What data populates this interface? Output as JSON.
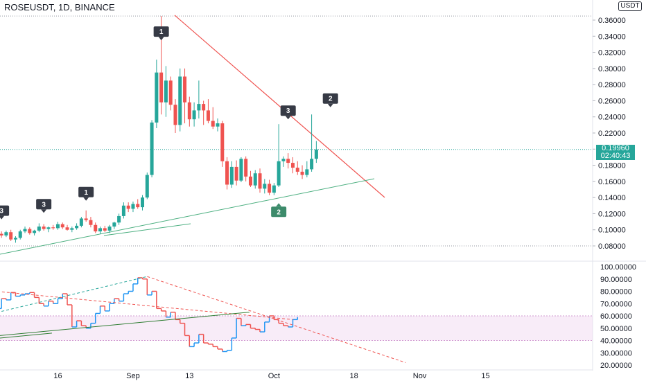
{
  "header": {
    "title": "ROSEUSDT, 1D, BINANCE",
    "currency": "USDT"
  },
  "price_tag": {
    "price": "0.19960",
    "countdown": "02:40:43"
  },
  "colors": {
    "up": "#26a69a",
    "down": "#ef5350",
    "trend": "#ef5350",
    "support": "#4caf80",
    "rsi_up": "#2196f3",
    "rsi_down": "#ef5350",
    "band": "#f3e0f3"
  },
  "x_ticks": [
    {
      "label": "16",
      "day": 16
    },
    {
      "label": "Sep",
      "day": 32
    },
    {
      "label": "13",
      "day": 44
    },
    {
      "label": "Oct",
      "day": 62
    },
    {
      "label": "18",
      "day": 79
    },
    {
      "label": "Nov",
      "day": 93
    },
    {
      "label": "15",
      "day": 107
    }
  ],
  "markers": [
    {
      "label": "3",
      "day": 1,
      "price": 0.113,
      "kind": "up"
    },
    {
      "label": "3",
      "day": 10,
      "price": 0.121,
      "kind": "up"
    },
    {
      "label": "1",
      "day": 19,
      "price": 0.136,
      "kind": "up"
    },
    {
      "label": "1",
      "day": 35,
      "price": 0.335,
      "kind": "up"
    },
    {
      "label": "3",
      "day": 62,
      "price": 0.237,
      "kind": "up"
    },
    {
      "label": "2",
      "day": 71,
      "price": 0.252,
      "kind": "up"
    },
    {
      "label": "2",
      "day": 60,
      "price": 0.133,
      "kind": "down"
    }
  ],
  "chart_data": [
    {
      "type": "candlestick",
      "title": "ROSEUSDT, 1D, BINANCE",
      "ylim": [
        0.074,
        0.38
      ],
      "y_ticks": [
        0.08,
        0.1,
        0.12,
        0.14,
        0.16,
        0.18,
        0.2,
        0.22,
        0.24,
        0.26,
        0.28,
        0.3,
        0.32,
        0.34,
        0.36
      ],
      "y_tick_labels": [
        "0.08000",
        "0.10000",
        "0.12000",
        "0.14000",
        "0.16000",
        "0.18000",
        "0.20000",
        "0.22000",
        "0.24000",
        "0.26000",
        "0.28000",
        "0.30000",
        "0.32000",
        "0.34000",
        "0.36000"
      ],
      "last_price": 0.1996,
      "candles": [
        [
          0.097,
          0.101,
          0.092,
          0.095
        ],
        [
          0.095,
          0.098,
          0.09,
          0.093
        ],
        [
          0.093,
          0.099,
          0.091,
          0.097
        ],
        [
          0.097,
          0.1,
          0.086,
          0.088
        ],
        [
          0.088,
          0.092,
          0.084,
          0.09
        ],
        [
          0.09,
          0.1,
          0.088,
          0.098
        ],
        [
          0.098,
          0.104,
          0.096,
          0.101
        ],
        [
          0.101,
          0.103,
          0.094,
          0.096
        ],
        [
          0.096,
          0.1,
          0.093,
          0.099
        ],
        [
          0.099,
          0.108,
          0.097,
          0.104
        ],
        [
          0.104,
          0.107,
          0.099,
          0.101
        ],
        [
          0.101,
          0.104,
          0.097,
          0.103
        ],
        [
          0.103,
          0.106,
          0.1,
          0.102
        ],
        [
          0.102,
          0.11,
          0.1,
          0.107
        ],
        [
          0.107,
          0.109,
          0.101,
          0.103
        ],
        [
          0.103,
          0.106,
          0.099,
          0.1
        ],
        [
          0.1,
          0.104,
          0.097,
          0.102
        ],
        [
          0.102,
          0.108,
          0.1,
          0.105
        ],
        [
          0.105,
          0.116,
          0.103,
          0.114
        ],
        [
          0.114,
          0.124,
          0.11,
          0.112
        ],
        [
          0.112,
          0.116,
          0.103,
          0.106
        ],
        [
          0.106,
          0.109,
          0.096,
          0.098
        ],
        [
          0.098,
          0.104,
          0.095,
          0.102
        ],
        [
          0.102,
          0.105,
          0.097,
          0.099
        ],
        [
          0.099,
          0.106,
          0.096,
          0.104
        ],
        [
          0.104,
          0.11,
          0.101,
          0.109
        ],
        [
          0.109,
          0.12,
          0.106,
          0.117
        ],
        [
          0.117,
          0.134,
          0.114,
          0.13
        ],
        [
          0.13,
          0.134,
          0.122,
          0.126
        ],
        [
          0.126,
          0.135,
          0.122,
          0.132
        ],
        [
          0.132,
          0.138,
          0.126,
          0.128
        ],
        [
          0.128,
          0.143,
          0.124,
          0.14
        ],
        [
          0.14,
          0.171,
          0.138,
          0.168
        ],
        [
          0.168,
          0.236,
          0.165,
          0.233
        ],
        [
          0.233,
          0.311,
          0.226,
          0.295
        ],
        [
          0.295,
          0.365,
          0.243,
          0.258
        ],
        [
          0.258,
          0.303,
          0.24,
          0.285
        ],
        [
          0.285,
          0.29,
          0.248,
          0.255
        ],
        [
          0.255,
          0.262,
          0.22,
          0.23
        ],
        [
          0.23,
          0.3,
          0.222,
          0.29
        ],
        [
          0.29,
          0.3,
          0.232,
          0.258
        ],
        [
          0.258,
          0.265,
          0.228,
          0.237
        ],
        [
          0.237,
          0.258,
          0.228,
          0.248
        ],
        [
          0.248,
          0.285,
          0.238,
          0.256
        ],
        [
          0.256,
          0.26,
          0.23,
          0.248
        ],
        [
          0.248,
          0.262,
          0.232,
          0.235
        ],
        [
          0.235,
          0.252,
          0.225,
          0.228
        ],
        [
          0.228,
          0.238,
          0.222,
          0.232
        ],
        [
          0.232,
          0.235,
          0.178,
          0.185
        ],
        [
          0.185,
          0.19,
          0.15,
          0.156
        ],
        [
          0.156,
          0.185,
          0.152,
          0.178
        ],
        [
          0.178,
          0.186,
          0.155,
          0.161
        ],
        [
          0.161,
          0.19,
          0.159,
          0.188
        ],
        [
          0.188,
          0.191,
          0.16,
          0.166
        ],
        [
          0.166,
          0.173,
          0.153,
          0.155
        ],
        [
          0.155,
          0.174,
          0.151,
          0.17
        ],
        [
          0.17,
          0.176,
          0.146,
          0.151
        ],
        [
          0.151,
          0.163,
          0.145,
          0.157
        ],
        [
          0.157,
          0.162,
          0.143,
          0.146
        ],
        [
          0.146,
          0.158,
          0.143,
          0.155
        ],
        [
          0.155,
          0.231,
          0.153,
          0.185
        ],
        [
          0.185,
          0.191,
          0.178,
          0.188
        ],
        [
          0.188,
          0.195,
          0.176,
          0.183
        ],
        [
          0.183,
          0.19,
          0.17,
          0.177
        ],
        [
          0.177,
          0.185,
          0.168,
          0.172
        ],
        [
          0.172,
          0.18,
          0.163,
          0.168
        ],
        [
          0.168,
          0.185,
          0.165,
          0.175
        ],
        [
          0.175,
          0.243,
          0.172,
          0.188
        ],
        [
          0.188,
          0.21,
          0.183,
          0.1996
        ]
      ],
      "day_offset": 3
    },
    {
      "type": "line",
      "title": "",
      "ylim": [
        16,
        102
      ],
      "y_ticks": [
        20,
        30,
        40,
        50,
        60,
        70,
        80,
        90,
        100
      ],
      "y_tick_labels": [
        "20.00000",
        "30.00000",
        "40.00000",
        "50.00000",
        "60.00000",
        "70.00000",
        "80.00000",
        "90.00000",
        "100.00000"
      ],
      "band": [
        40,
        60
      ],
      "rsi": [
        78,
        80,
        74,
        71,
        65,
        66,
        74,
        73,
        79,
        76,
        77,
        78,
        79,
        75,
        70,
        68,
        72,
        70,
        74,
        78,
        69,
        51,
        56,
        52,
        50,
        54,
        62,
        68,
        64,
        70,
        74,
        72,
        78,
        80,
        86,
        91,
        90,
        77,
        80,
        66,
        64,
        59,
        63,
        57,
        54,
        44,
        35,
        38,
        45,
        38,
        37,
        35,
        33,
        31,
        32,
        42,
        58,
        52,
        53,
        50,
        49,
        47,
        55,
        60,
        57,
        54,
        52,
        51,
        57,
        59
      ],
      "rsi_day_offset": -2,
      "dashed_top": [
        [
          0,
          60
        ],
        [
          35,
          92
        ]
      ],
      "dashed_res": [
        [
          35,
          92
        ],
        [
          90,
          22
        ]
      ],
      "dashed_ref": [
        [
          0,
          81
        ],
        [
          66,
          57
        ]
      ],
      "support_line": [
        [
          0,
          44
        ],
        [
          50,
          63
        ]
      ]
    }
  ]
}
